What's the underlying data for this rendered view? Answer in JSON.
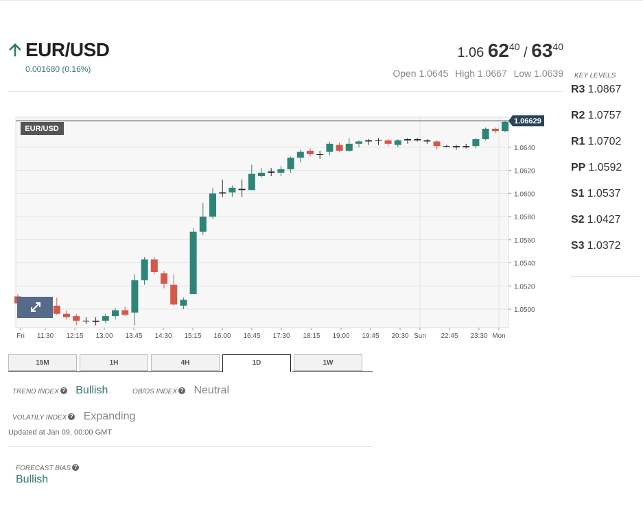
{
  "instrument": {
    "symbol": "EUR/USD",
    "direction": "up",
    "change": "0.001680 (0.16%)",
    "bid_prefix": "1.06",
    "bid_big": "62",
    "bid_sup": "40",
    "separator": "/",
    "ask_big": "63",
    "ask_sup": "40",
    "open": "Open 1.0645",
    "high": "High 1.0667",
    "low": "Low 1.0639"
  },
  "key_levels": {
    "title": "KEY LEVELS",
    "levels": [
      {
        "label": "R3",
        "value": "1.0867"
      },
      {
        "label": "R2",
        "value": "1.0757"
      },
      {
        "label": "R1",
        "value": "1.0702"
      },
      {
        "label": "PP",
        "value": "1.0592"
      },
      {
        "label": "S1",
        "value": "1.0537"
      },
      {
        "label": "S2",
        "value": "1.0427"
      },
      {
        "label": "S3",
        "value": "1.0372"
      }
    ]
  },
  "chart": {
    "symbol_label": "EUR/USD",
    "price_tag": "1.06629"
  },
  "chart_data": {
    "type": "candlestick",
    "x_ticks": [
      "Fri",
      "11:30",
      "12:15",
      "13:00",
      "13:45",
      "14:30",
      "15:15",
      "16:00",
      "16:45",
      "17:30",
      "18:15",
      "19:00",
      "19:45",
      "20:30",
      "Sun",
      "22:45",
      "23:30",
      "Mon"
    ],
    "y_ticks": [
      "1.0640",
      "1.0620",
      "1.0600",
      "1.0580",
      "1.0560",
      "1.0540",
      "1.0520",
      "1.0500"
    ],
    "ylim": [
      1.0484,
      1.0666
    ],
    "last_price": 1.06629,
    "up_color": "#2e8577",
    "down_color": "#d6584a",
    "candles": [
      {
        "o": 1.0511,
        "h": 1.0513,
        "l": 1.0504,
        "c": 1.0505
      },
      {
        "o": 1.0505,
        "h": 1.0509,
        "l": 1.0498,
        "c": 1.05
      },
      {
        "o": 1.0503,
        "h": 1.0509,
        "l": 1.0499,
        "c": 1.0506
      },
      {
        "o": 1.0505,
        "h": 1.0509,
        "l": 1.0499,
        "c": 1.0502
      },
      {
        "o": 1.0503,
        "h": 1.051,
        "l": 1.0495,
        "c": 1.0496
      },
      {
        "o": 1.0496,
        "h": 1.0499,
        "l": 1.0491,
        "c": 1.0493
      },
      {
        "o": 1.0494,
        "h": 1.0496,
        "l": 1.0486,
        "c": 1.049
      },
      {
        "o": 1.049,
        "h": 1.0493,
        "l": 1.0487,
        "c": 1.049
      },
      {
        "o": 1.049,
        "h": 1.0493,
        "l": 1.0486,
        "c": 1.0489
      },
      {
        "o": 1.049,
        "h": 1.0496,
        "l": 1.0488,
        "c": 1.0494
      },
      {
        "o": 1.0494,
        "h": 1.0501,
        "l": 1.0491,
        "c": 1.0499
      },
      {
        "o": 1.0499,
        "h": 1.0502,
        "l": 1.0494,
        "c": 1.0495
      },
      {
        "o": 1.0497,
        "h": 1.053,
        "l": 1.0486,
        "c": 1.0525
      },
      {
        "o": 1.0525,
        "h": 1.0545,
        "l": 1.0521,
        "c": 1.0543
      },
      {
        "o": 1.0543,
        "h": 1.0545,
        "l": 1.053,
        "c": 1.0532
      },
      {
        "o": 1.0531,
        "h": 1.0533,
        "l": 1.0518,
        "c": 1.0522
      },
      {
        "o": 1.0521,
        "h": 1.053,
        "l": 1.0503,
        "c": 1.0504
      },
      {
        "o": 1.0503,
        "h": 1.051,
        "l": 1.05,
        "c": 1.0508
      },
      {
        "o": 1.0513,
        "h": 1.057,
        "l": 1.0513,
        "c": 1.0567
      },
      {
        "o": 1.0567,
        "h": 1.0592,
        "l": 1.0564,
        "c": 1.058
      },
      {
        "o": 1.058,
        "h": 1.0605,
        "l": 1.0578,
        "c": 1.06
      },
      {
        "o": 1.06,
        "h": 1.0612,
        "l": 1.0597,
        "c": 1.0601
      },
      {
        "o": 1.0601,
        "h": 1.0607,
        "l": 1.0597,
        "c": 1.0605
      },
      {
        "o": 1.0604,
        "h": 1.0612,
        "l": 1.0597,
        "c": 1.0603
      },
      {
        "o": 1.0603,
        "h": 1.0625,
        "l": 1.0603,
        "c": 1.0617
      },
      {
        "o": 1.0615,
        "h": 1.0622,
        "l": 1.0614,
        "c": 1.0618
      },
      {
        "o": 1.0618,
        "h": 1.0622,
        "l": 1.0615,
        "c": 1.0619
      },
      {
        "o": 1.0618,
        "h": 1.0624,
        "l": 1.0615,
        "c": 1.0621
      },
      {
        "o": 1.0621,
        "h": 1.0632,
        "l": 1.0618,
        "c": 1.0631
      },
      {
        "o": 1.0631,
        "h": 1.0638,
        "l": 1.0627,
        "c": 1.0636
      },
      {
        "o": 1.0637,
        "h": 1.0639,
        "l": 1.0632,
        "c": 1.0634
      },
      {
        "o": 1.0634,
        "h": 1.0637,
        "l": 1.063,
        "c": 1.0634
      },
      {
        "o": 1.0636,
        "h": 1.0645,
        "l": 1.0633,
        "c": 1.0643
      },
      {
        "o": 1.0642,
        "h": 1.0644,
        "l": 1.0636,
        "c": 1.0637
      },
      {
        "o": 1.0637,
        "h": 1.0648,
        "l": 1.0636,
        "c": 1.0643
      },
      {
        "o": 1.0643,
        "h": 1.0646,
        "l": 1.064,
        "c": 1.0645
      },
      {
        "o": 1.0645,
        "h": 1.0647,
        "l": 1.0642,
        "c": 1.0646
      },
      {
        "o": 1.0646,
        "h": 1.0648,
        "l": 1.0642,
        "c": 1.0646
      },
      {
        "o": 1.0646,
        "h": 1.0647,
        "l": 1.0641,
        "c": 1.0643
      },
      {
        "o": 1.0642,
        "h": 1.0647,
        "l": 1.064,
        "c": 1.0646
      },
      {
        "o": 1.0646,
        "h": 1.0648,
        "l": 1.0643,
        "c": 1.0647
      },
      {
        "o": 1.0647,
        "h": 1.0648,
        "l": 1.0645,
        "c": 1.0646
      },
      {
        "o": 1.0646,
        "h": 1.0647,
        "l": 1.0643,
        "c": 1.0645
      },
      {
        "o": 1.0645,
        "h": 1.0646,
        "l": 1.0638,
        "c": 1.0641
      },
      {
        "o": 1.0641,
        "h": 1.0642,
        "l": 1.064,
        "c": 1.0641
      },
      {
        "o": 1.0641,
        "h": 1.0642,
        "l": 1.0638,
        "c": 1.064
      },
      {
        "o": 1.064,
        "h": 1.0643,
        "l": 1.0639,
        "c": 1.0641
      },
      {
        "o": 1.0641,
        "h": 1.0648,
        "l": 1.0639,
        "c": 1.0647
      },
      {
        "o": 1.0647,
        "h": 1.0657,
        "l": 1.0646,
        "c": 1.0656
      },
      {
        "o": 1.0656,
        "h": 1.0657,
        "l": 1.0652,
        "c": 1.0654
      },
      {
        "o": 1.0654,
        "h": 1.0663,
        "l": 1.0653,
        "c": 1.0662
      },
      {
        "o": 1.0663,
        "h": 1.0667,
        "l": 1.0661,
        "c": 1.0663
      }
    ]
  },
  "timeframes": {
    "tabs": [
      "15M",
      "1H",
      "4H",
      "1D",
      "1W"
    ],
    "active": "1D"
  },
  "indices": {
    "trend_label": "TREND INDEX",
    "trend_value": "Bullish",
    "obos_label": "OB/OS INDEX",
    "obos_value": "Neutral",
    "volatility_label": "VOLATILY INDEX",
    "volatility_value": "Expanding",
    "updated": "Updated at Jan 09, 00:00 GMT",
    "forecast_label": "FORECAST BIAS",
    "forecast_value": "Bullish"
  },
  "colors": {
    "bullish": "#2f7a6d",
    "bearish": "#d6584a",
    "tag_bg": "#2c4459"
  }
}
